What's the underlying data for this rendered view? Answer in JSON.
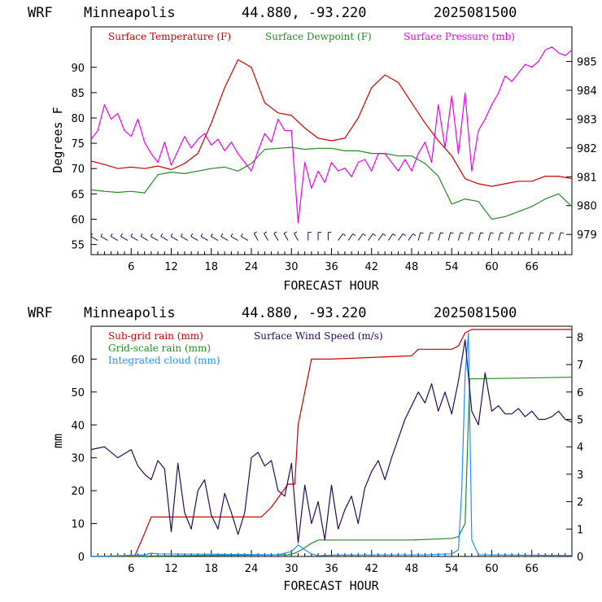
{
  "panels": [
    {
      "header": {
        "model": "WRF",
        "station": "Minneapolis",
        "coords": "44.880, -93.220",
        "date": "2025081500"
      },
      "xlabel": "FORECAST HOUR",
      "ylabel": "Degrees F",
      "legend": [
        {
          "label": "Surface Temperature (F)",
          "color": "#cc0000"
        },
        {
          "label": "Surface Dewpoint (F)",
          "color": "#228b22"
        },
        {
          "label": "Surface Pressure (mb)",
          "color": "#ee00ee"
        }
      ]
    },
    {
      "header": {
        "model": "WRF",
        "station": "Minneapolis",
        "coords": "44.880, -93.220",
        "date": "2025081500"
      },
      "xlabel": "FORECAST HOUR",
      "ylabel": "mm",
      "legend": [
        {
          "label": "Sub-grid rain (mm)",
          "color": "#cc0000"
        },
        {
          "label": "Grid-scale rain (mm)",
          "color": "#228b22"
        },
        {
          "label": "Integrated cloud (mm)",
          "color": "#1e90ff"
        },
        {
          "label": "Surface Wind Speed (m/s)",
          "color": "#2a0a55"
        }
      ]
    }
  ],
  "chart_data": [
    {
      "type": "line",
      "title": "WRF Minneapolis 44.880, -93.220 2025081500",
      "xlabel": "FORECAST HOUR",
      "ylabel": "Degrees F",
      "xlim": [
        0,
        72
      ],
      "xticks": [
        6,
        12,
        18,
        24,
        30,
        36,
        42,
        48,
        54,
        60,
        66
      ],
      "ylim": [
        53,
        98
      ],
      "yticks": [
        55,
        60,
        65,
        70,
        75,
        80,
        85,
        90
      ],
      "y2lim": [
        978.3,
        986.2
      ],
      "y2ticks": [
        979,
        980,
        981,
        982,
        983,
        984,
        985
      ],
      "series": [
        {
          "name": "Surface Temperature (F)",
          "color": "#cc0000",
          "axis": "left",
          "x": [
            0,
            2,
            4,
            6,
            8,
            10,
            12,
            14,
            16,
            18,
            20,
            22,
            24,
            26,
            28,
            30,
            32,
            34,
            36,
            38,
            40,
            42,
            44,
            46,
            48,
            50,
            52,
            54,
            56,
            58,
            60,
            62,
            64,
            66,
            68,
            70,
            72
          ],
          "y": [
            71.5,
            70.8,
            70,
            70.3,
            70,
            70.5,
            69.8,
            71,
            73,
            79,
            86,
            91.5,
            90,
            83,
            81,
            80.5,
            78,
            76,
            75.5,
            76,
            80,
            86,
            88.5,
            87,
            83,
            79,
            75.5,
            72.5,
            68,
            67,
            66.5,
            67,
            67.5,
            67.5,
            68.5,
            68.5,
            68
          ]
        },
        {
          "name": "Surface Dewpoint (F)",
          "color": "#228b22",
          "axis": "left",
          "x": [
            0,
            2,
            4,
            6,
            8,
            10,
            12,
            14,
            16,
            18,
            20,
            22,
            24,
            26,
            28,
            30,
            32,
            34,
            36,
            38,
            40,
            42,
            44,
            46,
            48,
            50,
            52,
            54,
            56,
            58,
            60,
            62,
            64,
            66,
            68,
            70,
            72
          ],
          "y": [
            65.8,
            65.5,
            65.3,
            65.5,
            65.2,
            68.8,
            69.3,
            69,
            69.5,
            70,
            70.3,
            69.5,
            71,
            73.8,
            74,
            74.2,
            73.8,
            74,
            74,
            73.5,
            73.5,
            73,
            73,
            72.5,
            72.5,
            71,
            68.5,
            63,
            64,
            63.5,
            60,
            60.5,
            61.5,
            62.5,
            64,
            65,
            62.5
          ]
        },
        {
          "name": "Surface Pressure (mb)",
          "color": "#ee00ee",
          "axis": "right",
          "x": [
            0,
            1,
            2,
            3,
            4,
            5,
            6,
            7,
            8,
            9,
            10,
            11,
            12,
            13,
            14,
            15,
            16,
            17,
            18,
            19,
            20,
            21,
            22,
            23,
            24,
            25,
            26,
            27,
            28,
            29,
            30,
            31,
            32,
            33,
            34,
            35,
            36,
            37,
            38,
            39,
            40,
            41,
            42,
            43,
            44,
            45,
            46,
            47,
            48,
            49,
            50,
            51,
            52,
            53,
            54,
            55,
            56,
            57,
            58,
            59,
            60,
            61,
            62,
            63,
            64,
            65,
            66,
            67,
            68,
            69,
            70,
            71,
            72
          ],
          "y": [
            982.3,
            982.6,
            983.5,
            983,
            983.2,
            982.6,
            982.4,
            983.0,
            982.2,
            981.8,
            981.5,
            982.2,
            981.4,
            981.9,
            982.4,
            982.0,
            982.3,
            982.5,
            982.1,
            982.3,
            981.9,
            982.2,
            981.8,
            981.5,
            981.2,
            981.9,
            982.5,
            982.2,
            983.0,
            982.6,
            982.6,
            979.4,
            981.5,
            980.6,
            981.2,
            980.8,
            981.5,
            981.2,
            981.3,
            981.0,
            981.5,
            981.6,
            981.2,
            981.8,
            981.8,
            981.5,
            981.2,
            981.6,
            981.2,
            981.8,
            982.2,
            981.5,
            983.5,
            982.0,
            983.8,
            981.8,
            983.9,
            981.2,
            982.6,
            983.0,
            983.5,
            983.9,
            984.5,
            984.3,
            984.6,
            984.9,
            984.8,
            985.0,
            985.4,
            985.5,
            985.3,
            985.2,
            985.4
          ]
        }
      ],
      "wind_barbs_row_y": 55.8
    },
    {
      "type": "line",
      "title": "WRF Minneapolis 44.880, -93.220 2025081500",
      "xlabel": "FORECAST HOUR",
      "ylabel": "mm",
      "xlim": [
        0,
        72
      ],
      "xticks": [
        6,
        12,
        18,
        24,
        30,
        36,
        42,
        48,
        54,
        60,
        66
      ],
      "ylim": [
        0,
        70
      ],
      "yticks": [
        0,
        10,
        20,
        30,
        40,
        50,
        60
      ],
      "y2lim": [
        0,
        8.4
      ],
      "y2ticks": [
        0,
        1,
        2,
        3,
        4,
        5,
        6,
        7,
        8
      ],
      "series": [
        {
          "name": "Sub-grid rain (mm)",
          "color": "#cc0000",
          "axis": "left",
          "x": [
            0,
            6.5,
            8,
            9,
            25.5,
            27,
            29.5,
            30.5,
            31,
            32,
            33,
            36,
            42,
            48,
            49,
            54,
            55,
            56,
            57,
            72
          ],
          "y": [
            0,
            0,
            7,
            12,
            12,
            15,
            22,
            22,
            40,
            50,
            60,
            60,
            60.5,
            61,
            63,
            63,
            64,
            68,
            69,
            69
          ]
        },
        {
          "name": "Grid-scale rain (mm)",
          "color": "#228b22",
          "axis": "left",
          "x": [
            0,
            29.5,
            30.5,
            31.5,
            33,
            34,
            48,
            54,
            55,
            56,
            56.7,
            57,
            72
          ],
          "y": [
            0,
            0.5,
            1,
            2,
            4,
            5,
            5,
            5.5,
            6,
            10,
            54,
            54,
            54.5
          ]
        },
        {
          "name": "Integrated cloud (mm)",
          "color": "#1e90ff",
          "axis": "left",
          "x": [
            0,
            8,
            9,
            10,
            28,
            30,
            31,
            32,
            33,
            34,
            36,
            50,
            54,
            55,
            55.5,
            56,
            56.5,
            57,
            58,
            72
          ],
          "y": [
            0,
            0.5,
            1,
            0.8,
            0.5,
            1.5,
            3.5,
            2,
            0.8,
            0.2,
            0.4,
            0.5,
            0.8,
            2,
            20,
            55,
            68,
            5,
            0.5,
            0.3
          ]
        },
        {
          "name": "Surface Wind Speed (m/s)",
          "color": "#2a0a55",
          "axis": "right",
          "x": [
            0,
            2,
            4,
            6,
            7,
            8,
            9,
            10,
            11,
            12,
            13,
            14,
            15,
            16,
            17,
            18,
            19,
            20,
            21,
            22,
            23,
            24,
            25,
            26,
            27,
            28,
            29,
            30,
            31,
            32,
            33,
            34,
            35,
            36,
            37,
            38,
            39,
            40,
            41,
            42,
            43,
            44,
            45,
            46,
            47,
            48,
            49,
            50,
            51,
            52,
            53,
            54,
            55,
            56,
            57,
            58,
            59,
            60,
            61,
            62,
            63,
            64,
            65,
            66,
            67,
            68,
            69,
            70,
            71,
            72
          ],
          "y": [
            3.9,
            4.0,
            3.6,
            3.9,
            3.3,
            3.0,
            2.8,
            3.5,
            3.2,
            0.9,
            3.4,
            1.6,
            1.0,
            2.4,
            2.8,
            1.5,
            1.0,
            2.3,
            1.6,
            0.8,
            1.6,
            3.6,
            3.8,
            3.3,
            3.5,
            2.4,
            2.2,
            3.4,
            0.5,
            2.6,
            1.2,
            2.0,
            0.6,
            2.6,
            1.0,
            1.7,
            2.2,
            1.2,
            2.5,
            3.1,
            3.5,
            2.8,
            3.6,
            4.3,
            5.0,
            5.5,
            6.0,
            5.6,
            6.3,
            5.3,
            6.0,
            5.2,
            6.4,
            7.9,
            5.3,
            4.8,
            6.7,
            5.3,
            5.5,
            5.2,
            5.2,
            5.4,
            5.1,
            5.3,
            5.0,
            5.0,
            5.1,
            5.3,
            5.0,
            4.9
          ]
        }
      ]
    }
  ]
}
